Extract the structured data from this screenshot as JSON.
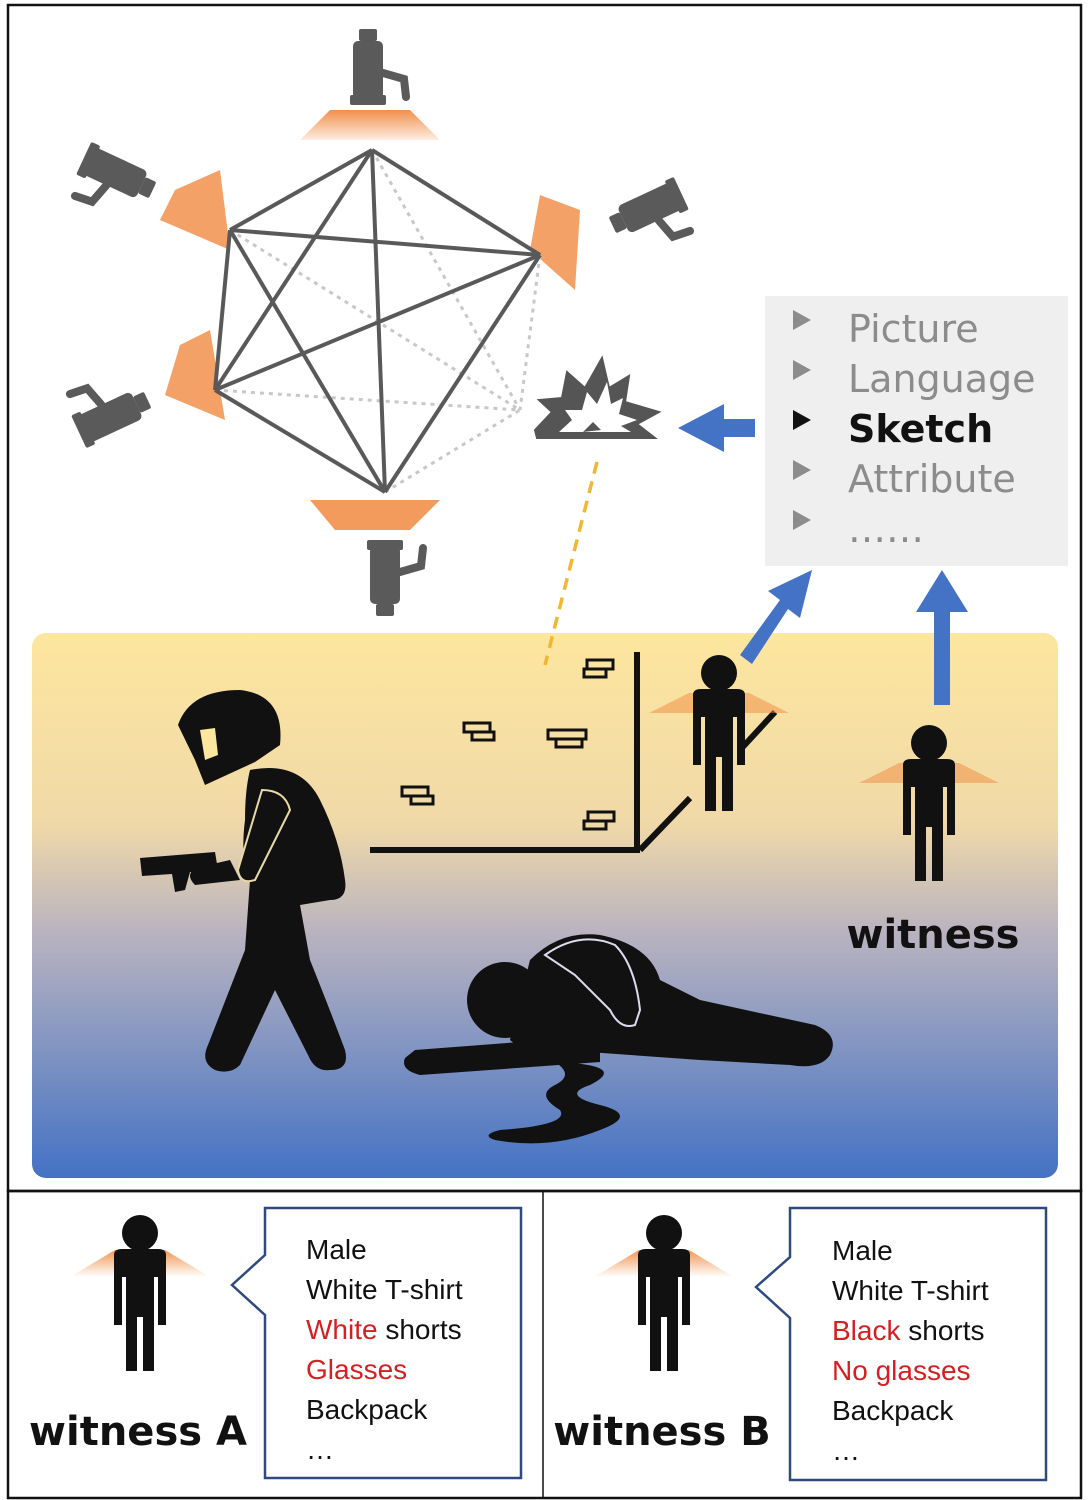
{
  "modality_menu": {
    "items": [
      {
        "label": "Picture",
        "active": false
      },
      {
        "label": "Language",
        "active": false
      },
      {
        "label": "Sketch",
        "active": true
      },
      {
        "label": "Attribute",
        "active": false
      },
      {
        "label": "……",
        "active": false
      }
    ]
  },
  "scene": {
    "witness_label": "witness"
  },
  "witness_a": {
    "label": "witness A",
    "attributes": [
      {
        "parts": [
          {
            "text": "Male",
            "highlight": false
          }
        ]
      },
      {
        "parts": [
          {
            "text": "White T-shirt",
            "highlight": false
          }
        ]
      },
      {
        "parts": [
          {
            "text": "White",
            "highlight": true
          },
          {
            "text": " shorts",
            "highlight": false
          }
        ]
      },
      {
        "parts": [
          {
            "text": "Glasses",
            "highlight": true
          }
        ]
      },
      {
        "parts": [
          {
            "text": "Backpack",
            "highlight": false
          }
        ]
      },
      {
        "parts": [
          {
            "text": "…",
            "highlight": false
          }
        ]
      }
    ]
  },
  "witness_b": {
    "label": "witness B",
    "attributes": [
      {
        "parts": [
          {
            "text": "Male",
            "highlight": false
          }
        ]
      },
      {
        "parts": [
          {
            "text": "White T-shirt",
            "highlight": false
          }
        ]
      },
      {
        "parts": [
          {
            "text": "Black",
            "highlight": true
          },
          {
            "text": " shorts",
            "highlight": false
          }
        ]
      },
      {
        "parts": [
          {
            "text": "No glasses",
            "highlight": true
          }
        ]
      },
      {
        "parts": [
          {
            "text": "Backpack",
            "highlight": false
          }
        ]
      },
      {
        "parts": [
          {
            "text": "…",
            "highlight": false
          }
        ]
      }
    ]
  },
  "colors": {
    "highlight_red": "#d42020",
    "arrow_blue": "#4472c4",
    "camera_gray": "#5a5a5a",
    "camera_cone_orange": "#f08a40",
    "scene_top": "#fde69e",
    "scene_bottom": "#4472c4",
    "dashed_link_yellow": "#f2b633"
  }
}
